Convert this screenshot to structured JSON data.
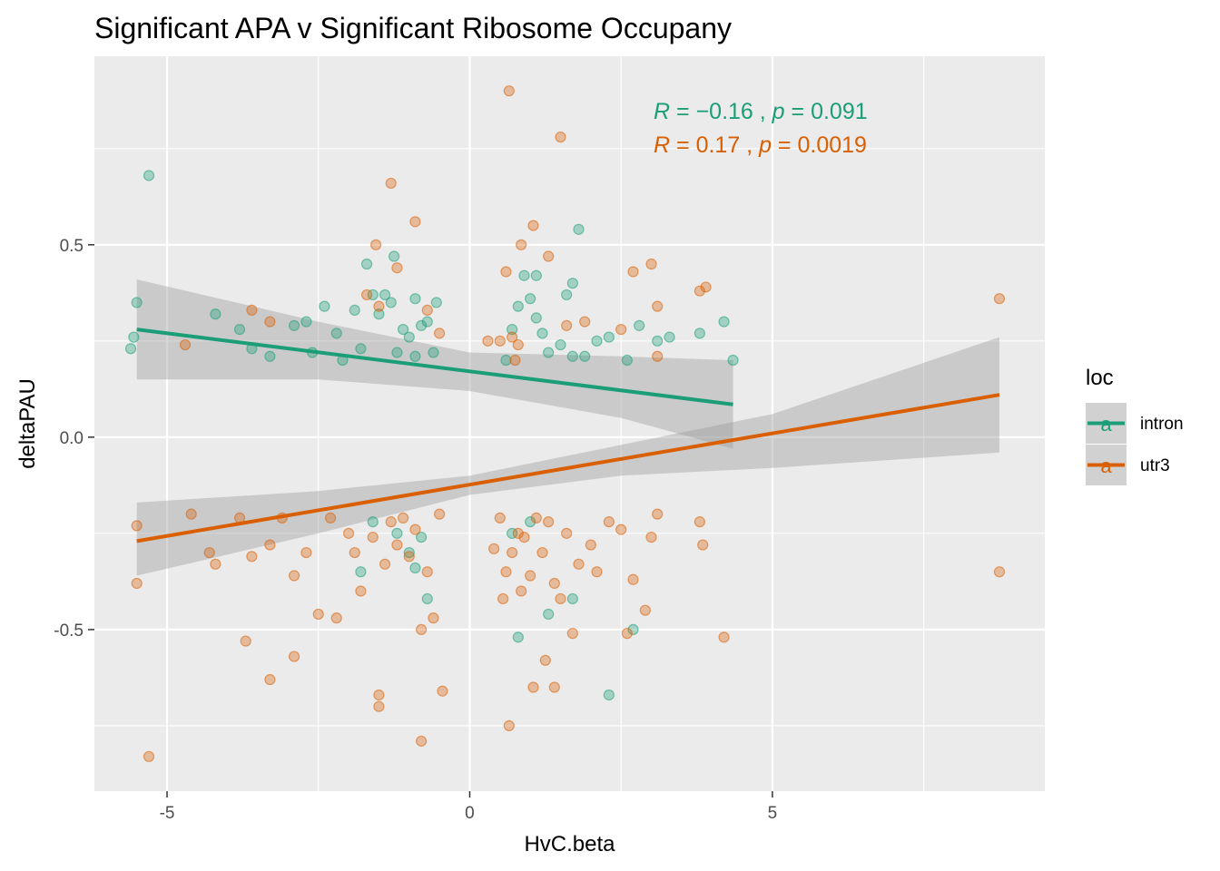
{
  "chart_data": {
    "type": "scatter",
    "title": "Significant APA v Significant Ribosome Occupany",
    "xlabel": "HvC.beta",
    "ylabel": "deltaPAU",
    "xlim": [
      -6.2,
      9.5
    ],
    "ylim": [
      -0.92,
      0.99
    ],
    "x_ticks": [
      -5,
      0,
      5
    ],
    "x_tick_labels": [
      "-5",
      "0",
      "5"
    ],
    "y_ticks": [
      -0.5,
      0.0,
      0.5
    ],
    "y_tick_labels": [
      "-0.5",
      "0.0",
      "0.5"
    ],
    "grid": true,
    "legend": {
      "title": "loc",
      "position": "right"
    },
    "series": [
      {
        "name": "intron",
        "color": "#1b9e77",
        "trend": {
          "x": [
            -5.5,
            4.35
          ],
          "y": [
            0.28,
            0.085
          ]
        },
        "band_upper": [
          [
            -5.5,
            0.41
          ],
          [
            -2.5,
            0.3
          ],
          [
            0,
            0.22
          ],
          [
            2.5,
            0.21
          ],
          [
            4.35,
            0.2
          ]
        ],
        "band_lower": [
          [
            -5.5,
            0.15
          ],
          [
            -2.5,
            0.15
          ],
          [
            0,
            0.12
          ],
          [
            2.5,
            0.05
          ],
          [
            4.35,
            -0.03
          ]
        ],
        "points": [
          [
            -5.3,
            0.68
          ],
          [
            -5.5,
            0.35
          ],
          [
            -5.55,
            0.26
          ],
          [
            -5.6,
            0.23
          ],
          [
            -4.2,
            0.32
          ],
          [
            -3.8,
            0.28
          ],
          [
            -3.6,
            0.23
          ],
          [
            -3.3,
            0.21
          ],
          [
            -2.9,
            0.29
          ],
          [
            -2.7,
            0.3
          ],
          [
            -2.6,
            0.22
          ],
          [
            -2.4,
            0.34
          ],
          [
            -2.2,
            0.27
          ],
          [
            -2.1,
            0.2
          ],
          [
            -1.9,
            0.33
          ],
          [
            -1.8,
            0.23
          ],
          [
            -1.6,
            0.37
          ],
          [
            -1.5,
            0.32
          ],
          [
            -1.4,
            0.37
          ],
          [
            -1.3,
            0.35
          ],
          [
            -1.2,
            0.22
          ],
          [
            -1.1,
            0.28
          ],
          [
            -1.0,
            0.26
          ],
          [
            -0.9,
            0.21
          ],
          [
            -0.8,
            0.29
          ],
          [
            -0.7,
            0.3
          ],
          [
            -0.6,
            0.22
          ],
          [
            -1.25,
            0.47
          ],
          [
            -0.9,
            0.36
          ],
          [
            -0.55,
            0.35
          ],
          [
            -1.7,
            0.45
          ],
          [
            0.6,
            0.2
          ],
          [
            0.7,
            0.28
          ],
          [
            0.8,
            0.34
          ],
          [
            0.9,
            0.42
          ],
          [
            1.0,
            0.36
          ],
          [
            1.1,
            0.31
          ],
          [
            1.2,
            0.27
          ],
          [
            1.3,
            0.22
          ],
          [
            1.5,
            0.24
          ],
          [
            1.6,
            0.37
          ],
          [
            1.7,
            0.21
          ],
          [
            1.8,
            0.54
          ],
          [
            1.9,
            0.21
          ],
          [
            2.1,
            0.25
          ],
          [
            2.3,
            0.26
          ],
          [
            2.6,
            0.2
          ],
          [
            2.8,
            0.29
          ],
          [
            3.1,
            0.25
          ],
          [
            3.3,
            0.26
          ],
          [
            3.8,
            0.27
          ],
          [
            4.2,
            0.3
          ],
          [
            4.35,
            0.2
          ],
          [
            1.1,
            0.42
          ],
          [
            1.7,
            0.4
          ],
          [
            -1.8,
            -0.35
          ],
          [
            -1.6,
            -0.22
          ],
          [
            -1.2,
            -0.25
          ],
          [
            -0.8,
            -0.26
          ],
          [
            -0.7,
            -0.42
          ],
          [
            -0.9,
            -0.34
          ],
          [
            0.7,
            -0.25
          ],
          [
            0.8,
            -0.52
          ],
          [
            1.0,
            -0.22
          ],
          [
            1.3,
            -0.46
          ],
          [
            1.7,
            -0.42
          ],
          [
            2.3,
            -0.67
          ],
          [
            2.7,
            -0.5
          ],
          [
            -1.0,
            -0.3
          ]
        ]
      },
      {
        "name": "utr3",
        "color": "#d95f02",
        "trend": {
          "x": [
            -5.5,
            8.75
          ],
          "y": [
            -0.27,
            0.11
          ]
        },
        "band_upper": [
          [
            -5.5,
            -0.17
          ],
          [
            -2.5,
            -0.14
          ],
          [
            0,
            -0.1
          ],
          [
            2.5,
            -0.02
          ],
          [
            5,
            0.06
          ],
          [
            8.75,
            0.26
          ]
        ],
        "band_lower": [
          [
            -5.5,
            -0.36
          ],
          [
            -2.5,
            -0.25
          ],
          [
            0,
            -0.15
          ],
          [
            2.5,
            -0.1
          ],
          [
            5,
            -0.08
          ],
          [
            8.75,
            -0.04
          ]
        ],
        "points": [
          [
            0.65,
            0.9
          ],
          [
            1.5,
            0.78
          ],
          [
            -1.3,
            0.66
          ],
          [
            -0.9,
            0.56
          ],
          [
            1.05,
            0.55
          ],
          [
            0.85,
            0.5
          ],
          [
            -1.55,
            0.5
          ],
          [
            1.3,
            0.47
          ],
          [
            -1.2,
            0.44
          ],
          [
            0.6,
            0.43
          ],
          [
            2.7,
            0.43
          ],
          [
            3.0,
            0.45
          ],
          [
            3.9,
            0.39
          ],
          [
            -1.7,
            0.37
          ],
          [
            -0.7,
            0.33
          ],
          [
            1.6,
            0.29
          ],
          [
            0.5,
            0.25
          ],
          [
            0.7,
            0.26
          ],
          [
            0.8,
            0.24
          ],
          [
            -3.6,
            0.33
          ],
          [
            -3.3,
            0.3
          ],
          [
            -4.7,
            0.24
          ],
          [
            -1.5,
            0.34
          ],
          [
            -0.5,
            0.27
          ],
          [
            0.3,
            0.25
          ],
          [
            1.9,
            0.3
          ],
          [
            2.5,
            0.28
          ],
          [
            3.1,
            0.34
          ],
          [
            3.8,
            0.38
          ],
          [
            8.75,
            0.36
          ],
          [
            3.1,
            0.21
          ],
          [
            0.75,
            0.2
          ],
          [
            -5.5,
            -0.23
          ],
          [
            -5.5,
            -0.38
          ],
          [
            -5.3,
            -0.83
          ],
          [
            -4.6,
            -0.2
          ],
          [
            -4.3,
            -0.3
          ],
          [
            -4.2,
            -0.33
          ],
          [
            -3.8,
            -0.21
          ],
          [
            -3.6,
            -0.31
          ],
          [
            -3.3,
            -0.28
          ],
          [
            -3.1,
            -0.21
          ],
          [
            -2.9,
            -0.36
          ],
          [
            -2.7,
            -0.3
          ],
          [
            -2.5,
            -0.46
          ],
          [
            -2.3,
            -0.21
          ],
          [
            -2.2,
            -0.47
          ],
          [
            -2.0,
            -0.25
          ],
          [
            -1.9,
            -0.3
          ],
          [
            -1.8,
            -0.4
          ],
          [
            -1.6,
            -0.26
          ],
          [
            -1.5,
            -0.67
          ],
          [
            -1.4,
            -0.33
          ],
          [
            -1.3,
            -0.22
          ],
          [
            -1.2,
            -0.28
          ],
          [
            -1.1,
            -0.21
          ],
          [
            -1.0,
            -0.31
          ],
          [
            -0.9,
            -0.24
          ],
          [
            -0.8,
            -0.5
          ],
          [
            -0.7,
            -0.35
          ],
          [
            -0.6,
            -0.47
          ],
          [
            -0.5,
            -0.2
          ],
          [
            -0.45,
            -0.66
          ],
          [
            -3.7,
            -0.53
          ],
          [
            -3.3,
            -0.63
          ],
          [
            -2.9,
            -0.57
          ],
          [
            -1.5,
            -0.7
          ],
          [
            -0.8,
            -0.79
          ],
          [
            0.4,
            -0.29
          ],
          [
            0.5,
            -0.21
          ],
          [
            0.55,
            -0.42
          ],
          [
            0.6,
            -0.35
          ],
          [
            0.65,
            -0.75
          ],
          [
            0.7,
            -0.3
          ],
          [
            0.8,
            -0.25
          ],
          [
            0.85,
            -0.4
          ],
          [
            0.9,
            -0.26
          ],
          [
            1.0,
            -0.36
          ],
          [
            1.05,
            -0.65
          ],
          [
            1.1,
            -0.21
          ],
          [
            1.2,
            -0.3
          ],
          [
            1.25,
            -0.58
          ],
          [
            1.3,
            -0.22
          ],
          [
            1.4,
            -0.38
          ],
          [
            1.5,
            -0.42
          ],
          [
            1.6,
            -0.25
          ],
          [
            1.7,
            -0.51
          ],
          [
            1.8,
            -0.33
          ],
          [
            2.0,
            -0.28
          ],
          [
            2.1,
            -0.35
          ],
          [
            2.3,
            -0.22
          ],
          [
            2.5,
            -0.24
          ],
          [
            2.6,
            -0.51
          ],
          [
            2.7,
            -0.37
          ],
          [
            2.9,
            -0.45
          ],
          [
            3.0,
            -0.26
          ],
          [
            3.1,
            -0.2
          ],
          [
            3.8,
            -0.22
          ],
          [
            3.85,
            -0.28
          ],
          [
            4.2,
            -0.52
          ],
          [
            8.75,
            -0.35
          ],
          [
            1.4,
            -0.65
          ]
        ]
      }
    ],
    "annotations": [
      {
        "series": "intron",
        "r": "−0.16",
        "p": "0.091"
      },
      {
        "series": "utr3",
        "r": "0.17",
        "p": "0.0019"
      }
    ]
  }
}
